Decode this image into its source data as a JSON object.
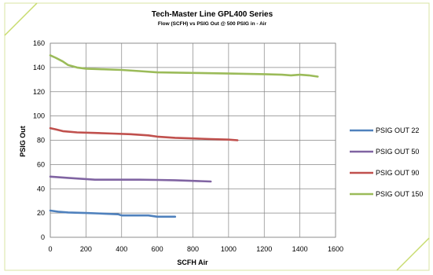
{
  "chart_data": {
    "type": "line",
    "title": "Tech-Master  Line GPL400 Series",
    "subtitle": "Flow (SCFH) vs PSIG Out @ 500 PSIG in - Air",
    "xlabel": "SCFH Air",
    "ylabel": "PSIG Out",
    "xlim": [
      0,
      1600
    ],
    "ylim": [
      0,
      160
    ],
    "x_ticks": [
      "0",
      "200",
      "400",
      "600",
      "800",
      "1000",
      "1200",
      "1400",
      "1600"
    ],
    "y_ticks": [
      "0",
      "20",
      "40",
      "60",
      "80",
      "100",
      "120",
      "140",
      "160"
    ],
    "grid": true,
    "legend_position": "right",
    "series": [
      {
        "name": "PSIG OUT 22",
        "color": "#4f81bd",
        "x": [
          0,
          50,
          100,
          200,
          300,
          380,
          400,
          500,
          550,
          600,
          700
        ],
        "y": [
          22,
          21,
          20.5,
          20,
          19.5,
          19,
          18,
          18,
          18,
          17,
          17
        ]
      },
      {
        "name": "PSIG OUT 50",
        "color": "#8064a2",
        "x": [
          0,
          100,
          200,
          250,
          300,
          400,
          500,
          600,
          700,
          800,
          900
        ],
        "y": [
          50,
          49,
          48,
          47.5,
          47.5,
          47.5,
          47.5,
          47.3,
          47,
          46.5,
          46
        ]
      },
      {
        "name": "PSIG OUT 90",
        "color": "#c0504d",
        "x": [
          0,
          30,
          70,
          150,
          250,
          350,
          450,
          500,
          550,
          600,
          700,
          800,
          900,
          1000,
          1050
        ],
        "y": [
          90,
          89,
          87.5,
          86.5,
          86,
          85.5,
          85,
          84.5,
          84,
          83,
          82,
          81.5,
          81,
          80.5,
          80
        ]
      },
      {
        "name": "PSIG OUT 150",
        "color": "#9bbb59",
        "x": [
          0,
          30,
          70,
          100,
          150,
          200,
          300,
          400,
          500,
          600,
          800,
          1000,
          1200,
          1300,
          1350,
          1400,
          1450,
          1500
        ],
        "y": [
          150,
          148,
          145,
          142,
          140,
          139,
          138.5,
          138,
          137,
          136,
          135.5,
          135,
          134.5,
          134,
          133.5,
          134,
          133.5,
          132.5
        ]
      }
    ]
  }
}
